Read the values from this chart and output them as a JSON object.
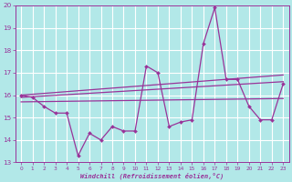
{
  "xlabel": "Windchill (Refroidissement éolien,°C)",
  "background_color": "#b2e8e8",
  "grid_color": "#ffffff",
  "line_color": "#993399",
  "x_data": [
    0,
    1,
    2,
    3,
    4,
    5,
    6,
    7,
    8,
    9,
    10,
    11,
    12,
    13,
    14,
    15,
    16,
    17,
    18,
    19,
    20,
    21,
    22,
    23
  ],
  "y_main": [
    16.0,
    15.9,
    15.5,
    15.2,
    15.2,
    13.3,
    14.3,
    14.0,
    14.6,
    14.4,
    14.4,
    17.3,
    17.0,
    14.6,
    14.8,
    14.9,
    18.3,
    19.9,
    16.7,
    16.7,
    15.5,
    14.9,
    14.9,
    16.5
  ],
  "y_reg1_start": 15.9,
  "y_reg1_end": 16.6,
  "y_reg2_start": 15.7,
  "y_reg2_end": 15.85,
  "y_reg3_start": 16.0,
  "y_reg3_end": 16.9,
  "ylim": [
    13,
    20
  ],
  "xlim_min": -0.5,
  "xlim_max": 23.5,
  "yticks": [
    13,
    14,
    15,
    16,
    17,
    18,
    19,
    20
  ],
  "xticks": [
    0,
    1,
    2,
    3,
    4,
    5,
    6,
    7,
    8,
    9,
    10,
    11,
    12,
    13,
    14,
    15,
    16,
    17,
    18,
    19,
    20,
    21,
    22,
    23
  ]
}
